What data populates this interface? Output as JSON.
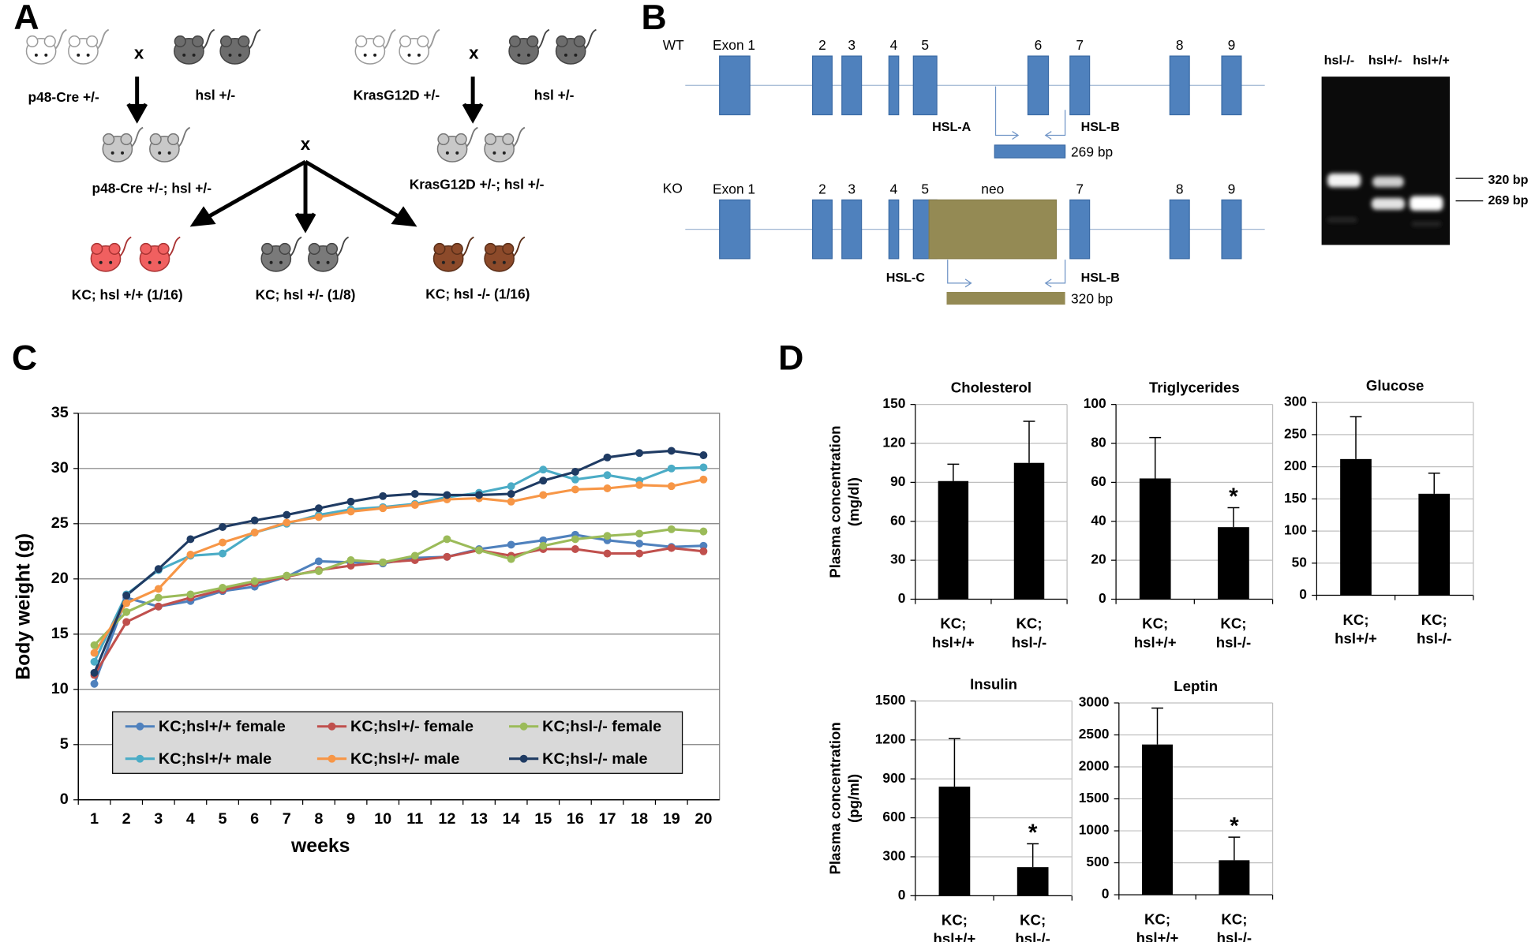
{
  "panel_labels": [
    "A",
    "B",
    "C",
    "D"
  ],
  "panel_a": {
    "cross_symbol": "x",
    "parents_left": [
      "p48-Cre +/-",
      "hsl +/-"
    ],
    "parents_right": [
      "KrasG12D +/-",
      "hsl +/-"
    ],
    "f1": [
      "p48-Cre +/-; hsl +/-",
      "KrasG12D +/-; hsl +/-"
    ],
    "offspring": [
      "KC; hsl +/+   (1/16)",
      "KC; hsl +/-  (1/8)",
      "KC; hsl -/-  (1/16)"
    ]
  },
  "panel_b": {
    "wt": {
      "label": "WT",
      "exons": [
        "Exon 1",
        "2",
        "3",
        "4",
        "5",
        "6",
        "7",
        "8",
        "9"
      ],
      "primers": [
        "HSL-A",
        "HSL-B"
      ],
      "product": "269 bp"
    },
    "ko": {
      "label": "KO",
      "exons": [
        "Exon 1",
        "2",
        "3",
        "4",
        "5",
        "neo",
        "7",
        "8",
        "9"
      ],
      "primers": [
        "HSL-C",
        "HSL-B"
      ],
      "product": "320 bp"
    },
    "gel": {
      "lanes": [
        "hsl-/-",
        "hsl+/-",
        "hsl+/+"
      ],
      "bands": [
        "320 bp",
        "269 bp"
      ]
    }
  },
  "chart_data": [
    {
      "type": "line",
      "ylabel": "Body weight (g)",
      "xlabel": "weeks",
      "categories": [
        "1",
        "2",
        "3",
        "4",
        "5",
        "6",
        "7",
        "8",
        "9",
        "10",
        "11",
        "12",
        "13",
        "14",
        "15",
        "16",
        "17",
        "18",
        "19",
        "20"
      ],
      "ylim": [
        0,
        35
      ],
      "yticks": [
        0,
        5,
        10,
        15,
        20,
        25,
        30,
        35
      ],
      "grid": true,
      "legend": "lower center",
      "series": [
        {
          "name": "KC;hsl+/+ female",
          "color": "#4f81bd",
          "values": [
            10.5,
            18.3,
            17.5,
            18.0,
            18.9,
            19.3,
            20.2,
            21.6,
            21.5,
            21.4,
            21.9,
            22.0,
            22.7,
            23.1,
            23.5,
            24.0,
            23.5,
            23.2,
            22.9,
            23.0
          ]
        },
        {
          "name": "KC;hsl+/- female",
          "color": "#c0504d",
          "values": [
            11.3,
            16.1,
            17.5,
            18.3,
            19.0,
            19.6,
            20.2,
            20.8,
            21.2,
            21.5,
            21.7,
            22.0,
            22.6,
            22.1,
            22.7,
            22.7,
            22.3,
            22.3,
            22.8,
            22.5
          ]
        },
        {
          "name": "KC;hsl-/- female",
          "color": "#9bbb59",
          "values": [
            14.0,
            17.0,
            18.3,
            18.6,
            19.2,
            19.8,
            20.3,
            20.7,
            21.7,
            21.5,
            22.1,
            23.6,
            22.6,
            21.8,
            23.0,
            23.6,
            23.9,
            24.1,
            24.5,
            24.3
          ]
        },
        {
          "name": "KC;hsl+/+ male",
          "color": "#4bacc6",
          "values": [
            12.5,
            18.6,
            20.8,
            22.1,
            22.3,
            24.2,
            25.0,
            25.8,
            26.3,
            26.5,
            26.8,
            27.4,
            27.8,
            28.4,
            29.9,
            29.0,
            29.4,
            28.9,
            30.0,
            30.1
          ]
        },
        {
          "name": "KC;hsl+/- male",
          "color": "#f79646",
          "values": [
            13.3,
            17.8,
            19.1,
            22.2,
            23.3,
            24.2,
            25.1,
            25.6,
            26.1,
            26.4,
            26.7,
            27.2,
            27.3,
            27.0,
            27.6,
            28.1,
            28.2,
            28.5,
            28.4,
            29.0
          ]
        },
        {
          "name": "KC;hsl-/- male",
          "color": "#1f3b63",
          "values": [
            11.5,
            18.5,
            20.9,
            23.6,
            24.7,
            25.3,
            25.8,
            26.4,
            27.0,
            27.5,
            27.7,
            27.6,
            27.6,
            27.7,
            28.9,
            29.7,
            31.0,
            31.4,
            31.6,
            31.2
          ]
        }
      ]
    },
    {
      "type": "bar",
      "title": "Cholesterol",
      "ylabel": "Plasma concentration\n(mg/dl)",
      "categories": [
        "KC;\nhsl+/+",
        "KC;\nhsl-/-"
      ],
      "values": [
        91,
        105
      ],
      "errors": [
        13,
        32
      ],
      "significance": [
        null,
        null
      ],
      "color": "#000000",
      "ylim": [
        0,
        150
      ],
      "yticks": [
        0,
        30,
        60,
        90,
        120,
        150
      ],
      "grid": true
    },
    {
      "type": "bar",
      "title": "Triglycerides",
      "categories": [
        "KC;\nhsl+/+",
        "KC;\nhsl-/-"
      ],
      "values": [
        62,
        37
      ],
      "errors": [
        21,
        10
      ],
      "significance": [
        null,
        "*"
      ],
      "color": "#000000",
      "ylim": [
        0,
        100
      ],
      "yticks": [
        0,
        20,
        40,
        60,
        80,
        100
      ],
      "grid": true
    },
    {
      "type": "bar",
      "title": "Glucose",
      "categories": [
        "KC;\nhsl+/+",
        "KC;\nhsl-/-"
      ],
      "values": [
        212,
        158
      ],
      "errors": [
        66,
        32
      ],
      "significance": [
        null,
        null
      ],
      "color": "#000000",
      "ylim": [
        0,
        300
      ],
      "yticks": [
        0,
        50,
        100,
        150,
        200,
        250,
        300
      ],
      "grid": true
    },
    {
      "type": "bar",
      "title": "Insulin",
      "ylabel": "Plasma concentration\n(pg/ml)",
      "categories": [
        "KC;\nhsl+/+",
        "KC;\nhsl-/-"
      ],
      "values": [
        840,
        220
      ],
      "errors": [
        370,
        180
      ],
      "significance": [
        null,
        "*"
      ],
      "color": "#000000",
      "ylim": [
        0,
        1500
      ],
      "yticks": [
        0,
        300,
        600,
        900,
        1200,
        1500
      ],
      "grid": true
    },
    {
      "type": "bar",
      "title": "Leptin",
      "categories": [
        "KC;\nhsl+/+",
        "KC;\nhsl-/-"
      ],
      "values": [
        2350,
        540
      ],
      "errors": [
        570,
        360
      ],
      "significance": [
        null,
        "*"
      ],
      "color": "#000000",
      "ylim": [
        0,
        3000
      ],
      "yticks": [
        0,
        500,
        1000,
        1500,
        2000,
        2500,
        3000
      ],
      "grid": true
    }
  ]
}
